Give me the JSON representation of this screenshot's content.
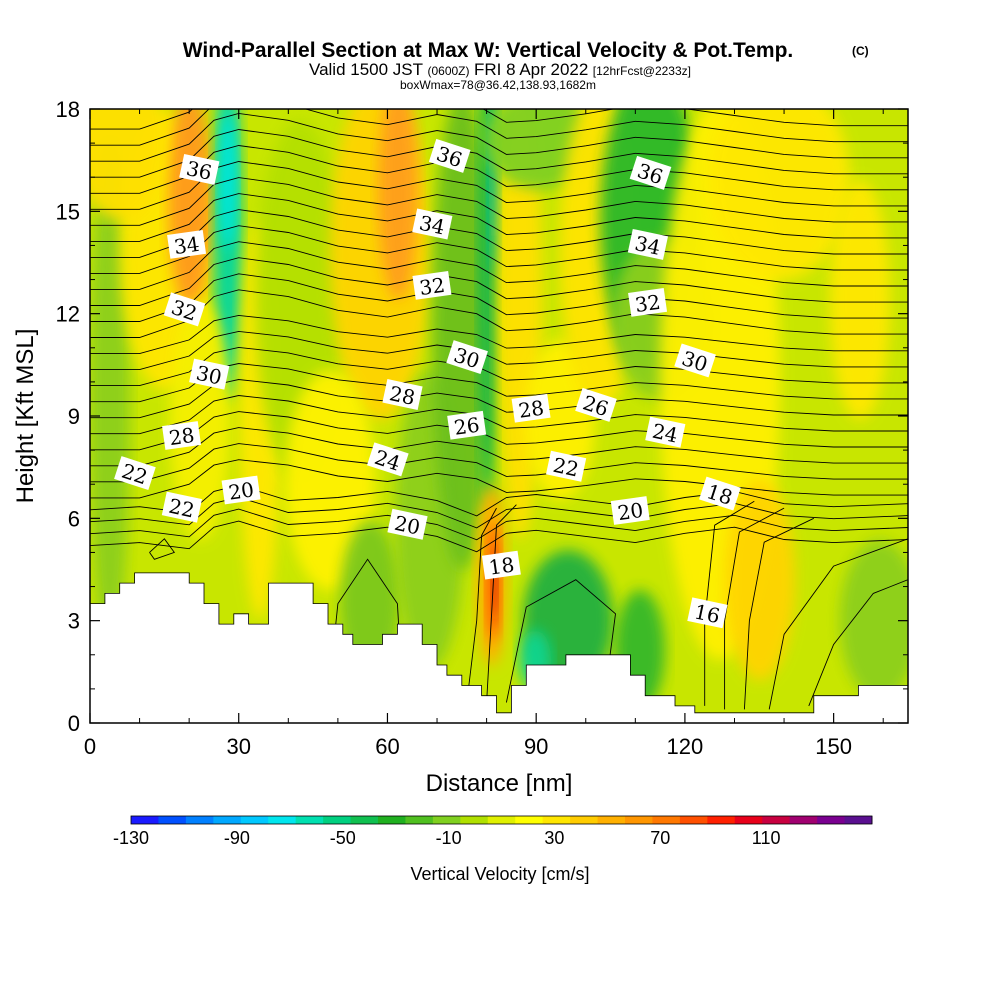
{
  "chart_data": {
    "type": "heatmap",
    "title": "Wind-Parallel Section at Max W: Vertical Velocity & Pot.Temp.",
    "title_mark": "(C)",
    "subtitle": {
      "valid": "Valid 1500 JST",
      "utc": "(0600Z)",
      "date": "FRI 8 Apr 2022",
      "forecast": "[12hrFcst@2233z]"
    },
    "boxinfo": "boxWmax=78@36.42,138.93,1682m",
    "xlabel": "Distance [nm]",
    "ylabel": "Height [Kft MSL]",
    "xlim": [
      0,
      165
    ],
    "ylim": [
      0,
      18
    ],
    "x_ticks": [
      "0",
      "30",
      "60",
      "90",
      "120",
      "150"
    ],
    "x_tick_values": [
      0,
      30,
      60,
      90,
      120,
      150
    ],
    "y_ticks": [
      "0",
      "3",
      "6",
      "9",
      "12",
      "15",
      "18"
    ],
    "y_tick_values": [
      0,
      3,
      6,
      9,
      12,
      15,
      18
    ],
    "colorbar": {
      "label": "Vertical Velocity [cm/s]",
      "tick_labels": [
        "-130",
        "-90",
        "-50",
        "-10",
        "30",
        "70",
        "110"
      ],
      "tick_values": [
        -130,
        -90,
        -50,
        -10,
        30,
        70,
        110
      ],
      "range": [
        -130,
        150
      ],
      "colors": [
        "#1a1aff",
        "#0050ff",
        "#0080ff",
        "#00a8ff",
        "#00c8ff",
        "#00e6ee",
        "#00e0b0",
        "#00d080",
        "#10c050",
        "#20b020",
        "#50c020",
        "#80d020",
        "#b0e000",
        "#e0f000",
        "#ffff00",
        "#ffe600",
        "#ffcc00",
        "#ffb000",
        "#ff9600",
        "#ff7800",
        "#ff5000",
        "#ff2000",
        "#e8001a",
        "#c80040",
        "#a00070",
        "#7a0090",
        "#5a1090"
      ]
    },
    "wmax_center": {
      "x": 81,
      "z": 4.6,
      "value": 78
    },
    "contour_labels": [
      {
        "text": "36",
        "x": 22,
        "z": 16.2
      },
      {
        "text": "34",
        "x": 19.5,
        "z": 14.0
      },
      {
        "text": "32",
        "x": 19,
        "z": 12.1
      },
      {
        "text": "30",
        "x": 24,
        "z": 10.2
      },
      {
        "text": "28",
        "x": 18.5,
        "z": 8.4
      },
      {
        "text": "22",
        "x": 9,
        "z": 7.3
      },
      {
        "text": "22",
        "x": 18.5,
        "z": 6.3
      },
      {
        "text": "20",
        "x": 30.5,
        "z": 6.8
      },
      {
        "text": "36",
        "x": 72.5,
        "z": 16.6
      },
      {
        "text": "34",
        "x": 69,
        "z": 14.6
      },
      {
        "text": "32",
        "x": 69,
        "z": 12.8
      },
      {
        "text": "30",
        "x": 76,
        "z": 10.7
      },
      {
        "text": "28",
        "x": 63,
        "z": 9.6
      },
      {
        "text": "26",
        "x": 76,
        "z": 8.7
      },
      {
        "text": "24",
        "x": 60,
        "z": 7.7
      },
      {
        "text": "20",
        "x": 64,
        "z": 5.8
      },
      {
        "text": "28",
        "x": 89,
        "z": 9.2
      },
      {
        "text": "26",
        "x": 102,
        "z": 9.3
      },
      {
        "text": "22",
        "x": 96,
        "z": 7.5
      },
      {
        "text": "18",
        "x": 83,
        "z": 4.6
      },
      {
        "text": "36",
        "x": 113,
        "z": 16.1
      },
      {
        "text": "34",
        "x": 112.5,
        "z": 14.0
      },
      {
        "text": "32",
        "x": 112.5,
        "z": 12.3
      },
      {
        "text": "30",
        "x": 122,
        "z": 10.6
      },
      {
        "text": "24",
        "x": 116,
        "z": 8.5
      },
      {
        "text": "20",
        "x": 109,
        "z": 6.2
      },
      {
        "text": "18",
        "x": 127,
        "z": 6.7
      },
      {
        "text": "16",
        "x": 124.5,
        "z": 3.2
      }
    ]
  }
}
